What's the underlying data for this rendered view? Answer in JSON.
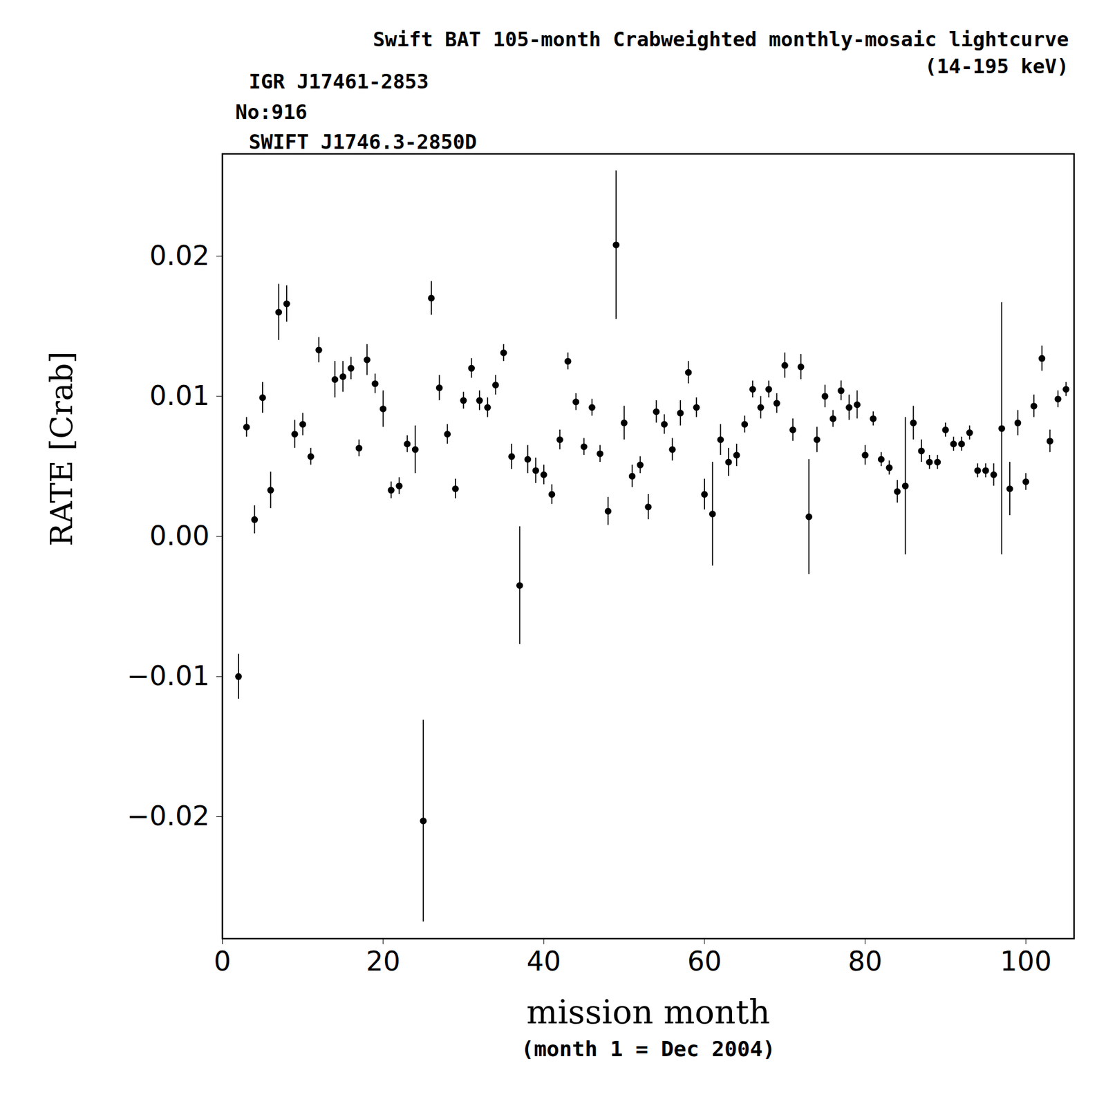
{
  "chart_data": {
    "type": "scatter",
    "title": "Swift BAT 105-month Crabweighted monthly-mosaic lightcurve",
    "subtitle": "(14-195 keV)",
    "annotations": [
      "IGR J17461-2853",
      "No:916",
      "SWIFT J1746.3-2850D"
    ],
    "x_label": "mission month",
    "caption": "(month 1 = Dec 2004)",
    "y_label": "RATE [Crab]",
    "color": "#000000",
    "marker": "circle",
    "xlim": [
      0,
      106
    ],
    "xticks": [
      0,
      20,
      40,
      60,
      80,
      100
    ],
    "ylim": [
      -0.0287,
      0.0273
    ],
    "yticks": [
      {
        "value": -0.02,
        "label": "−0.02"
      },
      {
        "value": -0.01,
        "label": "−0.01"
      },
      {
        "value": 0,
        "label": "0.00"
      },
      {
        "value": 0.01,
        "label": "0.01"
      },
      {
        "value": 0.02,
        "label": "0.02"
      }
    ],
    "x": [
      2,
      3,
      4,
      5,
      6,
      7,
      8,
      9,
      10,
      11,
      12,
      14,
      15,
      16,
      17,
      18,
      19,
      20,
      21,
      22,
      23,
      24,
      25,
      26,
      27,
      28,
      29,
      30,
      31,
      32,
      33,
      34,
      35,
      36,
      37,
      38,
      39,
      40,
      41,
      42,
      43,
      44,
      45,
      46,
      47,
      48,
      49,
      50,
      51,
      52,
      53,
      54,
      55,
      56,
      57,
      58,
      59,
      60,
      61,
      62,
      63,
      64,
      65,
      66,
      67,
      68,
      69,
      70,
      71,
      72,
      73,
      74,
      75,
      76,
      77,
      78,
      79,
      80,
      81,
      82,
      83,
      84,
      85,
      86,
      87,
      88,
      89,
      90,
      91,
      92,
      93,
      94,
      95,
      96,
      97,
      98,
      99,
      100,
      101,
      102,
      103,
      104,
      105
    ],
    "values": [
      -0.01,
      0.0078,
      0.0012,
      0.0099,
      0.0033,
      0.016,
      0.0166,
      0.0073,
      0.008,
      0.0057,
      0.0133,
      0.0112,
      0.0114,
      0.012,
      0.0063,
      0.0126,
      0.0109,
      0.0091,
      0.0033,
      0.0036,
      0.0066,
      0.0062,
      -0.0203,
      0.017,
      0.0106,
      0.0073,
      0.0034,
      0.0097,
      0.012,
      0.0097,
      0.0092,
      0.0108,
      0.0131,
      0.0057,
      -0.0035,
      0.0055,
      0.0047,
      0.0044,
      0.003,
      0.0069,
      0.0125,
      0.0096,
      0.0064,
      0.0092,
      0.0059,
      0.0018,
      0.0208,
      0.0081,
      0.0043,
      0.0051,
      0.0021,
      0.0089,
      0.008,
      0.0062,
      0.0088,
      0.0117,
      0.0092,
      0.003,
      0.0016,
      0.0069,
      0.0053,
      0.0058,
      0.008,
      0.0105,
      0.0092,
      0.0105,
      0.0095,
      0.0122,
      0.0076,
      0.0121,
      0.0014,
      0.0069,
      0.01,
      0.0084,
      0.0104,
      0.0092,
      0.0094,
      0.0058,
      0.0084,
      0.0055,
      0.0049,
      0.0032,
      0.0036,
      0.0081,
      0.0061,
      0.0053,
      0.0053,
      0.0076,
      0.0066,
      0.0066,
      0.0074,
      0.0047,
      0.0047,
      0.0044,
      0.0077,
      0.0034,
      0.0081,
      0.0039,
      0.0093,
      0.0127,
      0.0068,
      0.0098,
      0.0105
    ],
    "errors": [
      0.0016,
      0.0007,
      0.001,
      0.0011,
      0.0013,
      0.002,
      0.0013,
      0.001,
      0.0008,
      0.0006,
      0.0009,
      0.0013,
      0.0011,
      0.0008,
      0.0006,
      0.0011,
      0.0007,
      0.0013,
      0.0006,
      0.0006,
      0.0006,
      0.0017,
      0.0072,
      0.0012,
      0.0009,
      0.0007,
      0.0007,
      0.0006,
      0.0007,
      0.0007,
      0.0007,
      0.0007,
      0.0006,
      0.0009,
      0.0042,
      0.001,
      0.0009,
      0.0007,
      0.0007,
      0.0007,
      0.0006,
      0.0006,
      0.0006,
      0.0006,
      0.0006,
      0.001,
      0.0053,
      0.0012,
      0.0008,
      0.0006,
      0.0009,
      0.0008,
      0.0007,
      0.0008,
      0.0009,
      0.0008,
      0.0007,
      0.0011,
      0.0037,
      0.0011,
      0.001,
      0.0008,
      0.0006,
      0.0006,
      0.0008,
      0.0006,
      0.0007,
      0.0009,
      0.0008,
      0.0009,
      0.0041,
      0.0009,
      0.0008,
      0.0006,
      0.0007,
      0.0009,
      0.001,
      0.0007,
      0.0005,
      0.0005,
      0.0005,
      0.0008,
      0.0049,
      0.0012,
      0.0008,
      0.0005,
      0.0005,
      0.0005,
      0.0005,
      0.0005,
      0.0005,
      0.0005,
      0.0005,
      0.0008,
      0.009,
      0.0019,
      0.0009,
      0.0006,
      0.0008,
      0.0009,
      0.0008,
      0.0006,
      0.0005
    ]
  }
}
